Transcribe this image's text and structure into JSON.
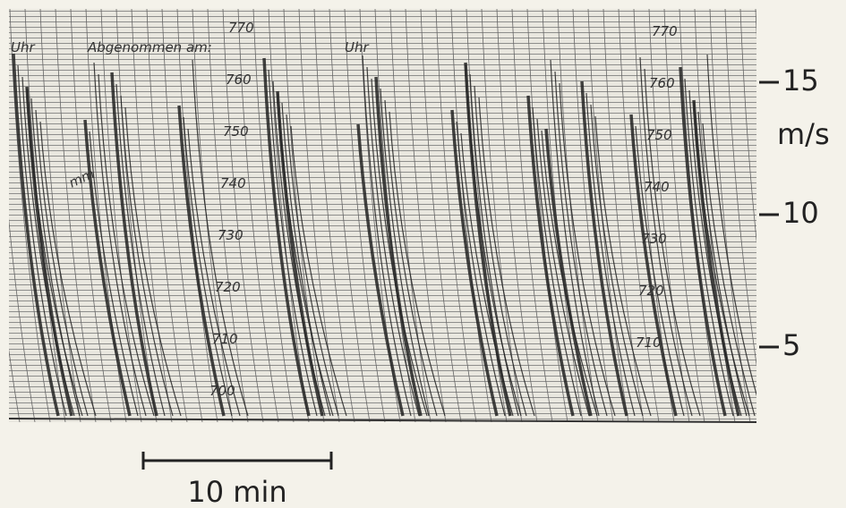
{
  "recorder_labels": {
    "left_uhr": "Uhr",
    "taken": "Abgenommen am:",
    "mm": "mm",
    "right_uhr": "Uhr",
    "left_scale": [
      "770",
      "760",
      "750",
      "740",
      "730",
      "720",
      "710",
      "700"
    ],
    "right_scale": [
      "770",
      "760",
      "750",
      "740",
      "730",
      "720",
      "710"
    ]
  },
  "axis": {
    "unit": "m/s",
    "ticks": [
      15,
      10,
      5
    ],
    "tick_positions": {
      "15": 92,
      "10": 240,
      "5": 388
    }
  },
  "scale_bar": {
    "label": "10 min"
  }
}
